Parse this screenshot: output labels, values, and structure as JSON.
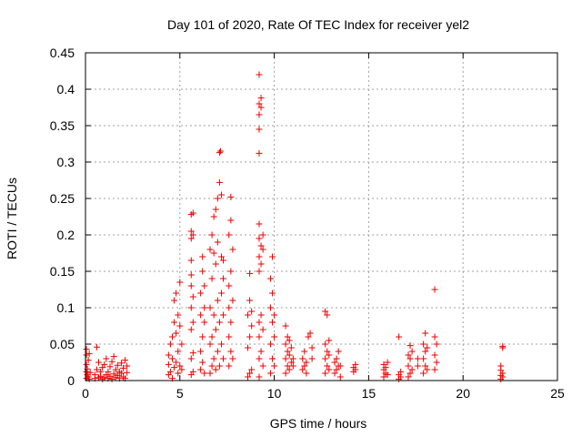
{
  "chart_data": {
    "type": "scatter",
    "title": "Day 101 of 2020, Rate Of TEC Index for receiver yel2",
    "xlabel": "GPS time / hours",
    "ylabel": "ROTI / TECUs",
    "xlim": [
      0,
      25
    ],
    "ylim": [
      0,
      0.45
    ],
    "xticks": [
      0,
      5,
      10,
      15,
      20,
      25
    ],
    "yticks": [
      0,
      0.05,
      0.1,
      0.15,
      0.2,
      0.25,
      0.3,
      0.35,
      0.4,
      0.45
    ],
    "xtick_labels": [
      "0",
      "5",
      "10",
      "15",
      "20",
      "25"
    ],
    "ytick_labels": [
      "0",
      "0.05",
      "0.1",
      "0.15",
      "0.2",
      "0.25",
      "0.3",
      "0.35",
      "0.4",
      "0.45"
    ],
    "grid": true,
    "marker": "+",
    "color": "#ee0000",
    "series": [
      {
        "name": "ROTI",
        "points": [
          [
            0.05,
            0.003
          ],
          [
            0.05,
            0.012
          ],
          [
            0.05,
            0.022
          ],
          [
            0.05,
            0.035
          ],
          [
            0.05,
            0.043
          ],
          [
            0.1,
            0.008
          ],
          [
            0.1,
            0.016
          ],
          [
            0.15,
            0.005
          ],
          [
            0.15,
            0.028
          ],
          [
            0.2,
            0.002
          ],
          [
            0.2,
            0.037
          ],
          [
            0.25,
            0.011
          ],
          [
            0.5,
            0.003
          ],
          [
            0.5,
            0.008
          ],
          [
            0.6,
            0.015
          ],
          [
            0.6,
            0.046
          ],
          [
            0.7,
            0.004
          ],
          [
            0.7,
            0.025
          ],
          [
            0.8,
            0.006
          ],
          [
            0.8,
            0.012
          ],
          [
            0.9,
            0.002
          ],
          [
            0.9,
            0.018
          ],
          [
            1.0,
            0.004
          ],
          [
            1.0,
            0.022
          ],
          [
            1.1,
            0.008
          ],
          [
            1.1,
            0.03
          ],
          [
            1.2,
            0.003
          ],
          [
            1.2,
            0.012
          ],
          [
            1.3,
            0.006
          ],
          [
            1.3,
            0.019
          ],
          [
            1.4,
            0.002
          ],
          [
            1.4,
            0.026
          ],
          [
            1.5,
            0.009
          ],
          [
            1.5,
            0.033
          ],
          [
            1.6,
            0.004
          ],
          [
            1.6,
            0.015
          ],
          [
            1.7,
            0.007
          ],
          [
            1.7,
            0.021
          ],
          [
            1.8,
            0.003
          ],
          [
            1.8,
            0.012
          ],
          [
            1.9,
            0.01
          ],
          [
            1.9,
            0.024
          ],
          [
            2.0,
            0.005
          ],
          [
            2.0,
            0.017
          ],
          [
            2.1,
            0.003
          ],
          [
            2.1,
            0.028
          ],
          [
            2.2,
            0.011
          ],
          [
            2.2,
            0.02
          ],
          [
            4.4,
            0.008
          ],
          [
            4.4,
            0.022
          ],
          [
            4.4,
            0.035
          ],
          [
            4.5,
            0.012
          ],
          [
            4.5,
            0.05
          ],
          [
            4.6,
            0.003
          ],
          [
            4.6,
            0.03
          ],
          [
            4.6,
            0.06
          ],
          [
            4.7,
            0.018
          ],
          [
            4.7,
            0.08
          ],
          [
            4.7,
            0.11
          ],
          [
            4.8,
            0.025
          ],
          [
            4.8,
            0.065
          ],
          [
            4.8,
            0.12
          ],
          [
            4.9,
            0.01
          ],
          [
            4.9,
            0.04
          ],
          [
            4.9,
            0.09
          ],
          [
            5.0,
            0.02
          ],
          [
            5.0,
            0.075
          ],
          [
            5.0,
            0.135
          ],
          [
            5.1,
            0.015
          ],
          [
            5.1,
            0.05
          ],
          [
            5.6,
            0.008
          ],
          [
            5.6,
            0.03
          ],
          [
            5.6,
            0.07
          ],
          [
            5.6,
            0.1
          ],
          [
            5.6,
            0.13
          ],
          [
            5.6,
            0.145
          ],
          [
            5.6,
            0.165
          ],
          [
            5.6,
            0.195
          ],
          [
            5.6,
            0.205
          ],
          [
            5.6,
            0.228
          ],
          [
            5.7,
            0.012
          ],
          [
            5.7,
            0.038
          ],
          [
            5.7,
            0.08
          ],
          [
            5.7,
            0.115
          ],
          [
            5.7,
            0.2
          ],
          [
            5.7,
            0.23
          ],
          [
            6.1,
            0.015
          ],
          [
            6.1,
            0.04
          ],
          [
            6.1,
            0.09
          ],
          [
            6.1,
            0.12
          ],
          [
            6.2,
            0.025
          ],
          [
            6.2,
            0.06
          ],
          [
            6.2,
            0.15
          ],
          [
            6.2,
            0.17
          ],
          [
            6.3,
            0.01
          ],
          [
            6.3,
            0.08
          ],
          [
            6.3,
            0.1
          ],
          [
            6.3,
            0.13
          ],
          [
            6.6,
            0.01
          ],
          [
            6.6,
            0.05
          ],
          [
            6.6,
            0.1
          ],
          [
            6.6,
            0.18
          ],
          [
            6.7,
            0.02
          ],
          [
            6.7,
            0.06
          ],
          [
            6.7,
            0.14
          ],
          [
            6.7,
            0.2
          ],
          [
            6.8,
            0.03
          ],
          [
            6.8,
            0.09
          ],
          [
            6.8,
            0.175
          ],
          [
            6.8,
            0.225
          ],
          [
            6.9,
            0.015
          ],
          [
            6.9,
            0.07
          ],
          [
            6.9,
            0.16
          ],
          [
            6.9,
            0.235
          ],
          [
            7.0,
            0.04
          ],
          [
            7.0,
            0.11
          ],
          [
            7.0,
            0.19
          ],
          [
            7.0,
            0.25
          ],
          [
            7.1,
            0.02
          ],
          [
            7.1,
            0.08
          ],
          [
            7.1,
            0.272
          ],
          [
            7.1,
            0.313
          ],
          [
            7.15,
            0.315
          ],
          [
            7.2,
            0.05
          ],
          [
            7.2,
            0.12
          ],
          [
            7.2,
            0.17
          ],
          [
            7.2,
            0.255
          ],
          [
            7.3,
            0.03
          ],
          [
            7.3,
            0.09
          ],
          [
            7.3,
            0.14
          ],
          [
            7.3,
            0.165
          ],
          [
            7.6,
            0.02
          ],
          [
            7.6,
            0.06
          ],
          [
            7.6,
            0.1
          ],
          [
            7.6,
            0.13
          ],
          [
            7.6,
            0.2
          ],
          [
            7.7,
            0.04
          ],
          [
            7.7,
            0.08
          ],
          [
            7.7,
            0.15
          ],
          [
            7.7,
            0.22
          ],
          [
            7.7,
            0.252
          ],
          [
            7.8,
            0.03
          ],
          [
            7.8,
            0.11
          ],
          [
            7.8,
            0.18
          ],
          [
            8.6,
            0.005
          ],
          [
            8.6,
            0.045
          ],
          [
            8.6,
            0.09
          ],
          [
            8.7,
            0.01
          ],
          [
            8.7,
            0.06
          ],
          [
            8.7,
            0.11
          ],
          [
            8.7,
            0.147
          ],
          [
            8.8,
            0.015
          ],
          [
            8.8,
            0.075
          ],
          [
            8.8,
            0.095
          ],
          [
            9.2,
            0.005
          ],
          [
            9.2,
            0.03
          ],
          [
            9.2,
            0.06
          ],
          [
            9.2,
            0.08
          ],
          [
            9.2,
            0.15
          ],
          [
            9.2,
            0.17
          ],
          [
            9.2,
            0.195
          ],
          [
            9.2,
            0.215
          ],
          [
            9.2,
            0.312
          ],
          [
            9.2,
            0.345
          ],
          [
            9.2,
            0.365
          ],
          [
            9.2,
            0.38
          ],
          [
            9.2,
            0.42
          ],
          [
            9.3,
            0.04
          ],
          [
            9.3,
            0.09
          ],
          [
            9.3,
            0.16
          ],
          [
            9.3,
            0.185
          ],
          [
            9.3,
            0.375
          ],
          [
            9.3,
            0.388
          ],
          [
            9.4,
            0.02
          ],
          [
            9.4,
            0.07
          ],
          [
            9.4,
            0.2
          ],
          [
            9.4,
            0.18
          ],
          [
            9.8,
            0.01
          ],
          [
            9.8,
            0.05
          ],
          [
            9.8,
            0.1
          ],
          [
            9.8,
            0.14
          ],
          [
            9.9,
            0.03
          ],
          [
            9.9,
            0.08
          ],
          [
            9.9,
            0.12
          ],
          [
            9.9,
            0.17
          ],
          [
            10.0,
            0.02
          ],
          [
            10.0,
            0.06
          ],
          [
            10.0,
            0.09
          ],
          [
            10.6,
            0.01
          ],
          [
            10.6,
            0.03
          ],
          [
            10.6,
            0.05
          ],
          [
            10.6,
            0.075
          ],
          [
            10.7,
            0.02
          ],
          [
            10.7,
            0.04
          ],
          [
            10.7,
            0.06
          ],
          [
            10.8,
            0.015
          ],
          [
            10.8,
            0.035
          ],
          [
            10.8,
            0.055
          ],
          [
            10.9,
            0.025
          ],
          [
            10.9,
            0.045
          ],
          [
            11.0,
            0.02
          ],
          [
            11.0,
            0.03
          ],
          [
            11.5,
            0.015
          ],
          [
            11.5,
            0.03
          ],
          [
            11.6,
            0.02
          ],
          [
            11.6,
            0.04
          ],
          [
            11.7,
            0.01
          ],
          [
            11.7,
            0.025
          ],
          [
            11.8,
            0.06
          ],
          [
            11.9,
            0.065
          ],
          [
            12.0,
            0.03
          ],
          [
            12.0,
            0.045
          ],
          [
            12.7,
            0.01
          ],
          [
            12.7,
            0.03
          ],
          [
            12.7,
            0.05
          ],
          [
            12.7,
            0.095
          ],
          [
            12.8,
            0.02
          ],
          [
            12.8,
            0.04
          ],
          [
            12.8,
            0.09
          ],
          [
            12.9,
            0.015
          ],
          [
            12.9,
            0.035
          ],
          [
            12.9,
            0.055
          ],
          [
            13.2,
            0.01
          ],
          [
            13.2,
            0.025
          ],
          [
            13.3,
            0.015
          ],
          [
            13.3,
            0.03
          ],
          [
            13.4,
            0.02
          ],
          [
            13.4,
            0.04
          ],
          [
            13.5,
            0.005
          ],
          [
            13.5,
            0.02
          ],
          [
            14.2,
            0.012
          ],
          [
            14.2,
            0.018
          ],
          [
            14.3,
            0.015
          ],
          [
            14.3,
            0.022
          ],
          [
            15.8,
            0.005
          ],
          [
            15.8,
            0.015
          ],
          [
            15.8,
            0.022
          ],
          [
            15.9,
            0.01
          ],
          [
            15.9,
            0.018
          ],
          [
            16.0,
            0.025
          ],
          [
            16.0,
            0.008
          ],
          [
            16.6,
            0.002
          ],
          [
            16.6,
            0.008
          ],
          [
            16.6,
            0.06
          ],
          [
            16.7,
            0.005
          ],
          [
            16.7,
            0.012
          ],
          [
            17.1,
            0.005
          ],
          [
            17.1,
            0.02
          ],
          [
            17.1,
            0.035
          ],
          [
            17.2,
            0.01
          ],
          [
            17.2,
            0.03
          ],
          [
            17.2,
            0.048
          ],
          [
            17.3,
            0.015
          ],
          [
            17.3,
            0.04
          ],
          [
            17.6,
            0.02
          ],
          [
            17.6,
            0.03
          ],
          [
            17.9,
            0.01
          ],
          [
            17.9,
            0.03
          ],
          [
            17.9,
            0.05
          ],
          [
            18.0,
            0.02
          ],
          [
            18.0,
            0.04
          ],
          [
            18.0,
            0.065
          ],
          [
            18.1,
            0.015
          ],
          [
            18.1,
            0.045
          ],
          [
            18.5,
            0.015
          ],
          [
            18.5,
            0.035
          ],
          [
            18.5,
            0.06
          ],
          [
            18.5,
            0.125
          ],
          [
            18.6,
            0.025
          ],
          [
            18.6,
            0.05
          ],
          [
            22.0,
            0.002
          ],
          [
            22.0,
            0.007
          ],
          [
            22.0,
            0.014
          ],
          [
            22.0,
            0.02
          ],
          [
            22.1,
            0.005
          ],
          [
            22.1,
            0.01
          ],
          [
            22.1,
            0.045
          ],
          [
            22.1,
            0.047
          ]
        ]
      }
    ]
  }
}
